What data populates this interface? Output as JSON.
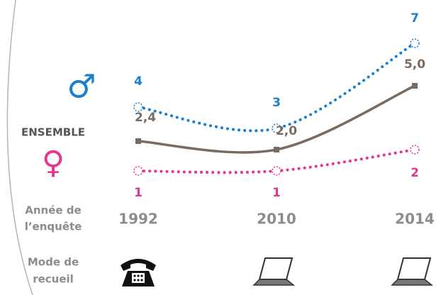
{
  "chart_data": {
    "type": "line",
    "categories": [
      "1992",
      "2010",
      "2014"
    ],
    "x_label": [
      "Année de",
      "l’enquête"
    ],
    "mode_label": [
      "Mode de",
      "recueil"
    ],
    "series": [
      {
        "name": "♂",
        "color": "#1a7fd0",
        "style": "dotted",
        "values": [
          4,
          3,
          7
        ]
      },
      {
        "name": "ENSEMBLE",
        "color": "#7a6b62",
        "style": "solid",
        "values": [
          2.4,
          2.0,
          5.0
        ],
        "value_labels": [
          "2,4",
          "2,0",
          "5,0"
        ]
      },
      {
        "name": "♀",
        "color": "#e8348f",
        "style": "dotted",
        "values": [
          1,
          1,
          2
        ]
      }
    ]
  }
}
